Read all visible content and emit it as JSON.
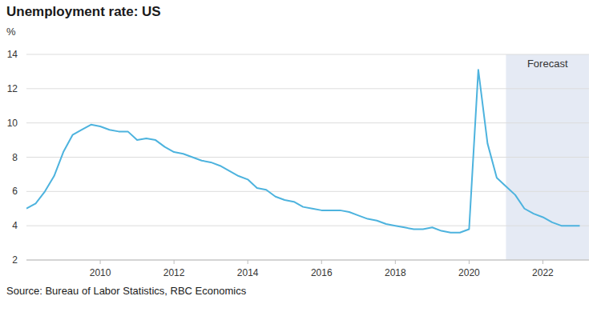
{
  "chart_data": {
    "type": "line",
    "title": "Unemployment rate: US",
    "y_label": "%",
    "source": "Source: Bureau of Labor Statistics, RBC Economics",
    "color": "#4db3de",
    "grid": true,
    "forecast": {
      "label": "Forecast",
      "from": 2021.0
    },
    "x": [
      2008.0,
      2008.25,
      2008.5,
      2008.75,
      2009.0,
      2009.25,
      2009.5,
      2009.75,
      2010.0,
      2010.25,
      2010.5,
      2010.75,
      2011.0,
      2011.25,
      2011.5,
      2011.75,
      2012.0,
      2012.25,
      2012.5,
      2012.75,
      2013.0,
      2013.25,
      2013.5,
      2013.75,
      2014.0,
      2014.25,
      2014.5,
      2014.75,
      2015.0,
      2015.25,
      2015.5,
      2015.75,
      2016.0,
      2016.25,
      2016.5,
      2016.75,
      2017.0,
      2017.25,
      2017.5,
      2017.75,
      2018.0,
      2018.25,
      2018.5,
      2018.75,
      2019.0,
      2019.25,
      2019.5,
      2019.75,
      2020.0,
      2020.25,
      2020.5,
      2020.75,
      2021.0,
      2021.25,
      2021.5,
      2021.75,
      2022.0,
      2022.25,
      2022.5,
      2022.75,
      2023.0
    ],
    "values": [
      5.0,
      5.3,
      6.0,
      6.9,
      8.3,
      9.3,
      9.6,
      9.9,
      9.8,
      9.6,
      9.5,
      9.5,
      9.0,
      9.1,
      9.0,
      8.6,
      8.3,
      8.2,
      8.0,
      7.8,
      7.7,
      7.5,
      7.2,
      6.9,
      6.7,
      6.2,
      6.1,
      5.7,
      5.5,
      5.4,
      5.1,
      5.0,
      4.9,
      4.9,
      4.9,
      4.8,
      4.6,
      4.4,
      4.3,
      4.1,
      4.0,
      3.9,
      3.8,
      3.8,
      3.9,
      3.7,
      3.6,
      3.6,
      3.8,
      13.1,
      8.8,
      6.8,
      6.3,
      5.8,
      5.0,
      4.7,
      4.5,
      4.2,
      4.0,
      4.0,
      4.0
    ],
    "xlim": [
      2008.0,
      2023.25
    ],
    "xticks": [
      2010,
      2012,
      2014,
      2016,
      2018,
      2020,
      2022
    ],
    "ylim": [
      2,
      14
    ],
    "yticks": [
      2,
      4,
      6,
      8,
      10,
      12,
      14
    ]
  }
}
